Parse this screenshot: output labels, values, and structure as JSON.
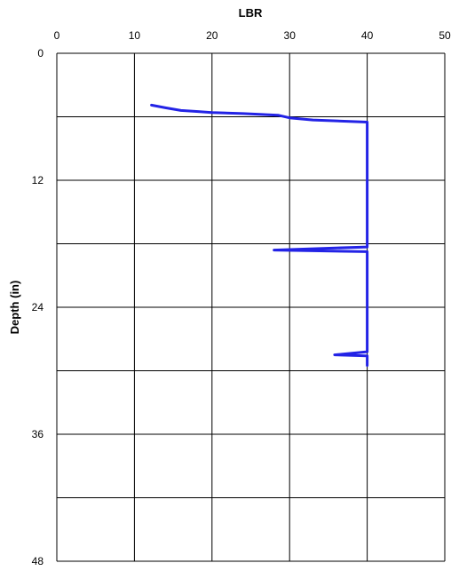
{
  "chart_data": {
    "type": "line",
    "title": "",
    "xlabel": "LBR",
    "ylabel": "Depth (in)",
    "x_axis_position": "top",
    "y_axis_inverted": true,
    "xlim": [
      0,
      50
    ],
    "ylim": [
      0,
      48
    ],
    "xticks": [
      0,
      10,
      20,
      30,
      40,
      50
    ],
    "yticks": [
      0,
      12,
      24,
      36,
      48
    ],
    "x_tick_labels": [
      "0",
      "10",
      "20",
      "30",
      "40",
      "50"
    ],
    "y_tick_labels": [
      "0",
      "12",
      "24",
      "36",
      "48"
    ],
    "x_gridlines": [
      0,
      10,
      20,
      30,
      40,
      50
    ],
    "y_gridlines": [
      0,
      6,
      12,
      18,
      24,
      30,
      36,
      42,
      48
    ],
    "grid": true,
    "legend": "none",
    "series": [
      {
        "color": "#2323e6",
        "points": [
          [
            12.2,
            4.9
          ],
          [
            14.0,
            5.15
          ],
          [
            16.0,
            5.4
          ],
          [
            18.0,
            5.5
          ],
          [
            20.0,
            5.6
          ],
          [
            24.0,
            5.7
          ],
          [
            28.5,
            5.85
          ],
          [
            30.0,
            6.1
          ],
          [
            33.0,
            6.3
          ],
          [
            40.0,
            6.5
          ],
          [
            40.0,
            18.3
          ],
          [
            28.0,
            18.6
          ],
          [
            40.0,
            18.75
          ],
          [
            40.0,
            28.2
          ],
          [
            35.8,
            28.5
          ],
          [
            40.0,
            28.6
          ],
          [
            40.0,
            29.5
          ]
        ]
      }
    ]
  }
}
